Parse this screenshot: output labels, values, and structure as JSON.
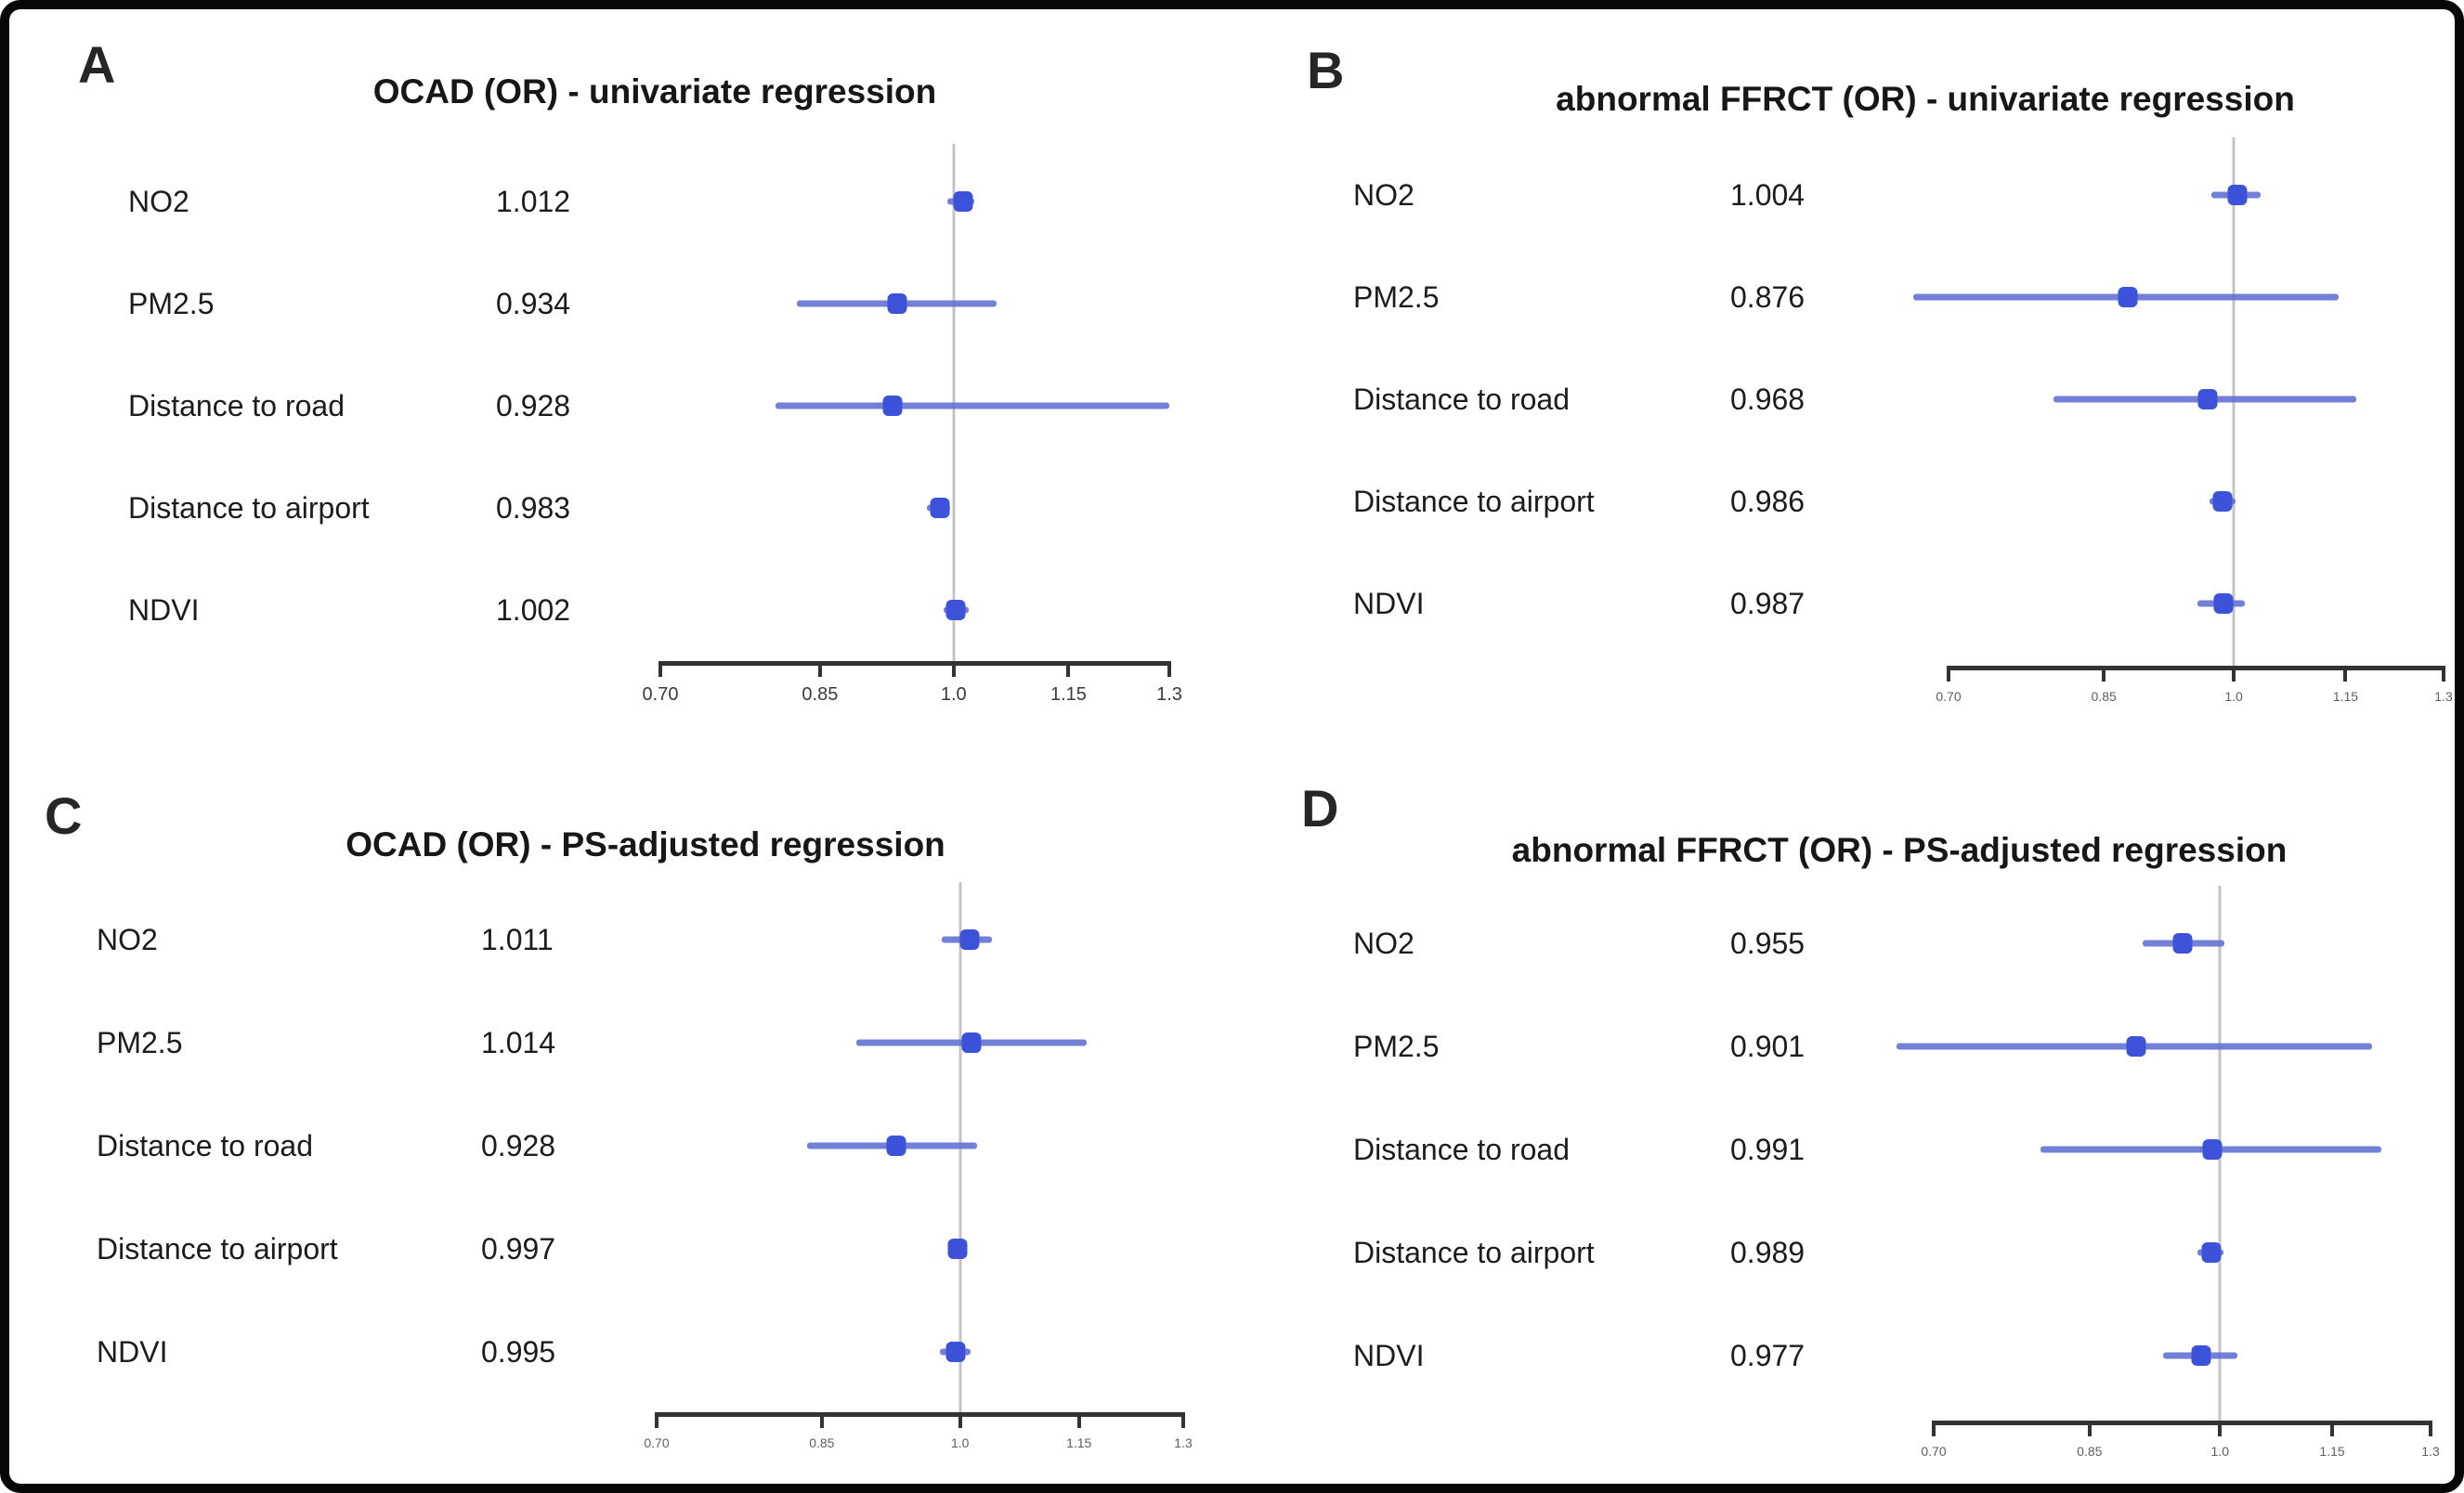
{
  "figure": {
    "background": "#ffffff",
    "border_color": "#060606"
  },
  "colors": {
    "marker": "#3b52d9",
    "whisker": "#5f70d2",
    "reference_line": "#c4c4c4",
    "axis": "#333333",
    "text": "#1c1c1c"
  },
  "chart_data": {
    "type": "forest",
    "x_axis": {
      "scale": "log",
      "range": [
        0.7,
        1.3
      ],
      "tick_labels": [
        "0.70",
        "0.85",
        "1.0",
        "1.15",
        "1.3"
      ],
      "tick_values": [
        0.7,
        0.85,
        1.0,
        1.15,
        1.3
      ],
      "reference_line": 1.0
    },
    "row_labels": [
      "NO2",
      "PM2.5",
      "Distance to road",
      "Distance to airport",
      "NDVI"
    ],
    "panels": [
      {
        "letter": "A",
        "title": "OCAD (OR) - univariate regression",
        "rows": [
          {
            "label": "NO2",
            "or_label": "1.012",
            "or": 1.012,
            "ci_low": 0.992,
            "ci_high": 1.026
          },
          {
            "label": "PM2.5",
            "or_label": "0.934",
            "or": 0.934,
            "ci_low": 0.826,
            "ci_high": 1.054
          },
          {
            "label": "Distance to road",
            "or_label": "0.928",
            "or": 0.928,
            "ci_low": 0.805,
            "ci_high": 1.3
          },
          {
            "label": "Distance to airport",
            "or_label": "0.983",
            "or": 0.983,
            "ci_low": 0.968,
            "ci_high": 0.996
          },
          {
            "label": "NDVI",
            "or_label": "1.002",
            "or": 1.002,
            "ci_low": 0.988,
            "ci_high": 1.018
          }
        ]
      },
      {
        "letter": "B",
        "title": "abnormal FFRCT (OR) - univariate regression",
        "rows": [
          {
            "label": "NO2",
            "or_label": "1.004",
            "or": 1.004,
            "ci_low": 0.972,
            "ci_high": 1.034
          },
          {
            "label": "PM2.5",
            "or_label": "0.876",
            "or": 0.876,
            "ci_low": 0.67,
            "ci_high": 1.14
          },
          {
            "label": "Distance to road",
            "or_label": "0.968",
            "or": 0.968,
            "ci_low": 0.798,
            "ci_high": 1.166
          },
          {
            "label": "Distance to airport",
            "or_label": "0.986",
            "or": 0.986,
            "ci_low": 0.97,
            "ci_high": 1.002
          },
          {
            "label": "NDVI",
            "or_label": "0.987",
            "or": 0.987,
            "ci_low": 0.956,
            "ci_high": 1.014
          }
        ]
      },
      {
        "letter": "C",
        "title": "OCAD (OR) - PS-adjusted regression",
        "rows": [
          {
            "label": "NO2",
            "or_label": "1.011",
            "or": 1.011,
            "ci_low": 0.979,
            "ci_high": 1.038
          },
          {
            "label": "PM2.5",
            "or_label": "1.014",
            "or": 1.014,
            "ci_low": 0.885,
            "ci_high": 1.16
          },
          {
            "label": "Distance to road",
            "or_label": "0.928",
            "or": 0.928,
            "ci_low": 0.835,
            "ci_high": 1.02
          },
          {
            "label": "Distance to airport",
            "or_label": "0.997",
            "or": 0.997,
            "ci_low": 0.988,
            "ci_high": 1.006
          },
          {
            "label": "NDVI",
            "or_label": "0.995",
            "or": 0.995,
            "ci_low": 0.977,
            "ci_high": 1.012
          }
        ]
      },
      {
        "letter": "D",
        "title": "abnormal FFRCT (OR) - PS-adjusted regression",
        "rows": [
          {
            "label": "NO2",
            "or_label": "0.955",
            "or": 0.955,
            "ci_low": 0.908,
            "ci_high": 1.006
          },
          {
            "label": "PM2.5",
            "or_label": "0.901",
            "or": 0.901,
            "ci_low": 0.668,
            "ci_high": 1.208
          },
          {
            "label": "Distance to road",
            "or_label": "0.991",
            "or": 0.991,
            "ci_low": 0.8,
            "ci_high": 1.222
          },
          {
            "label": "Distance to airport",
            "or_label": "0.989",
            "or": 0.989,
            "ci_low": 0.972,
            "ci_high": 1.004
          },
          {
            "label": "NDVI",
            "or_label": "0.977",
            "or": 0.977,
            "ci_low": 0.932,
            "ci_high": 1.022
          }
        ]
      }
    ]
  }
}
